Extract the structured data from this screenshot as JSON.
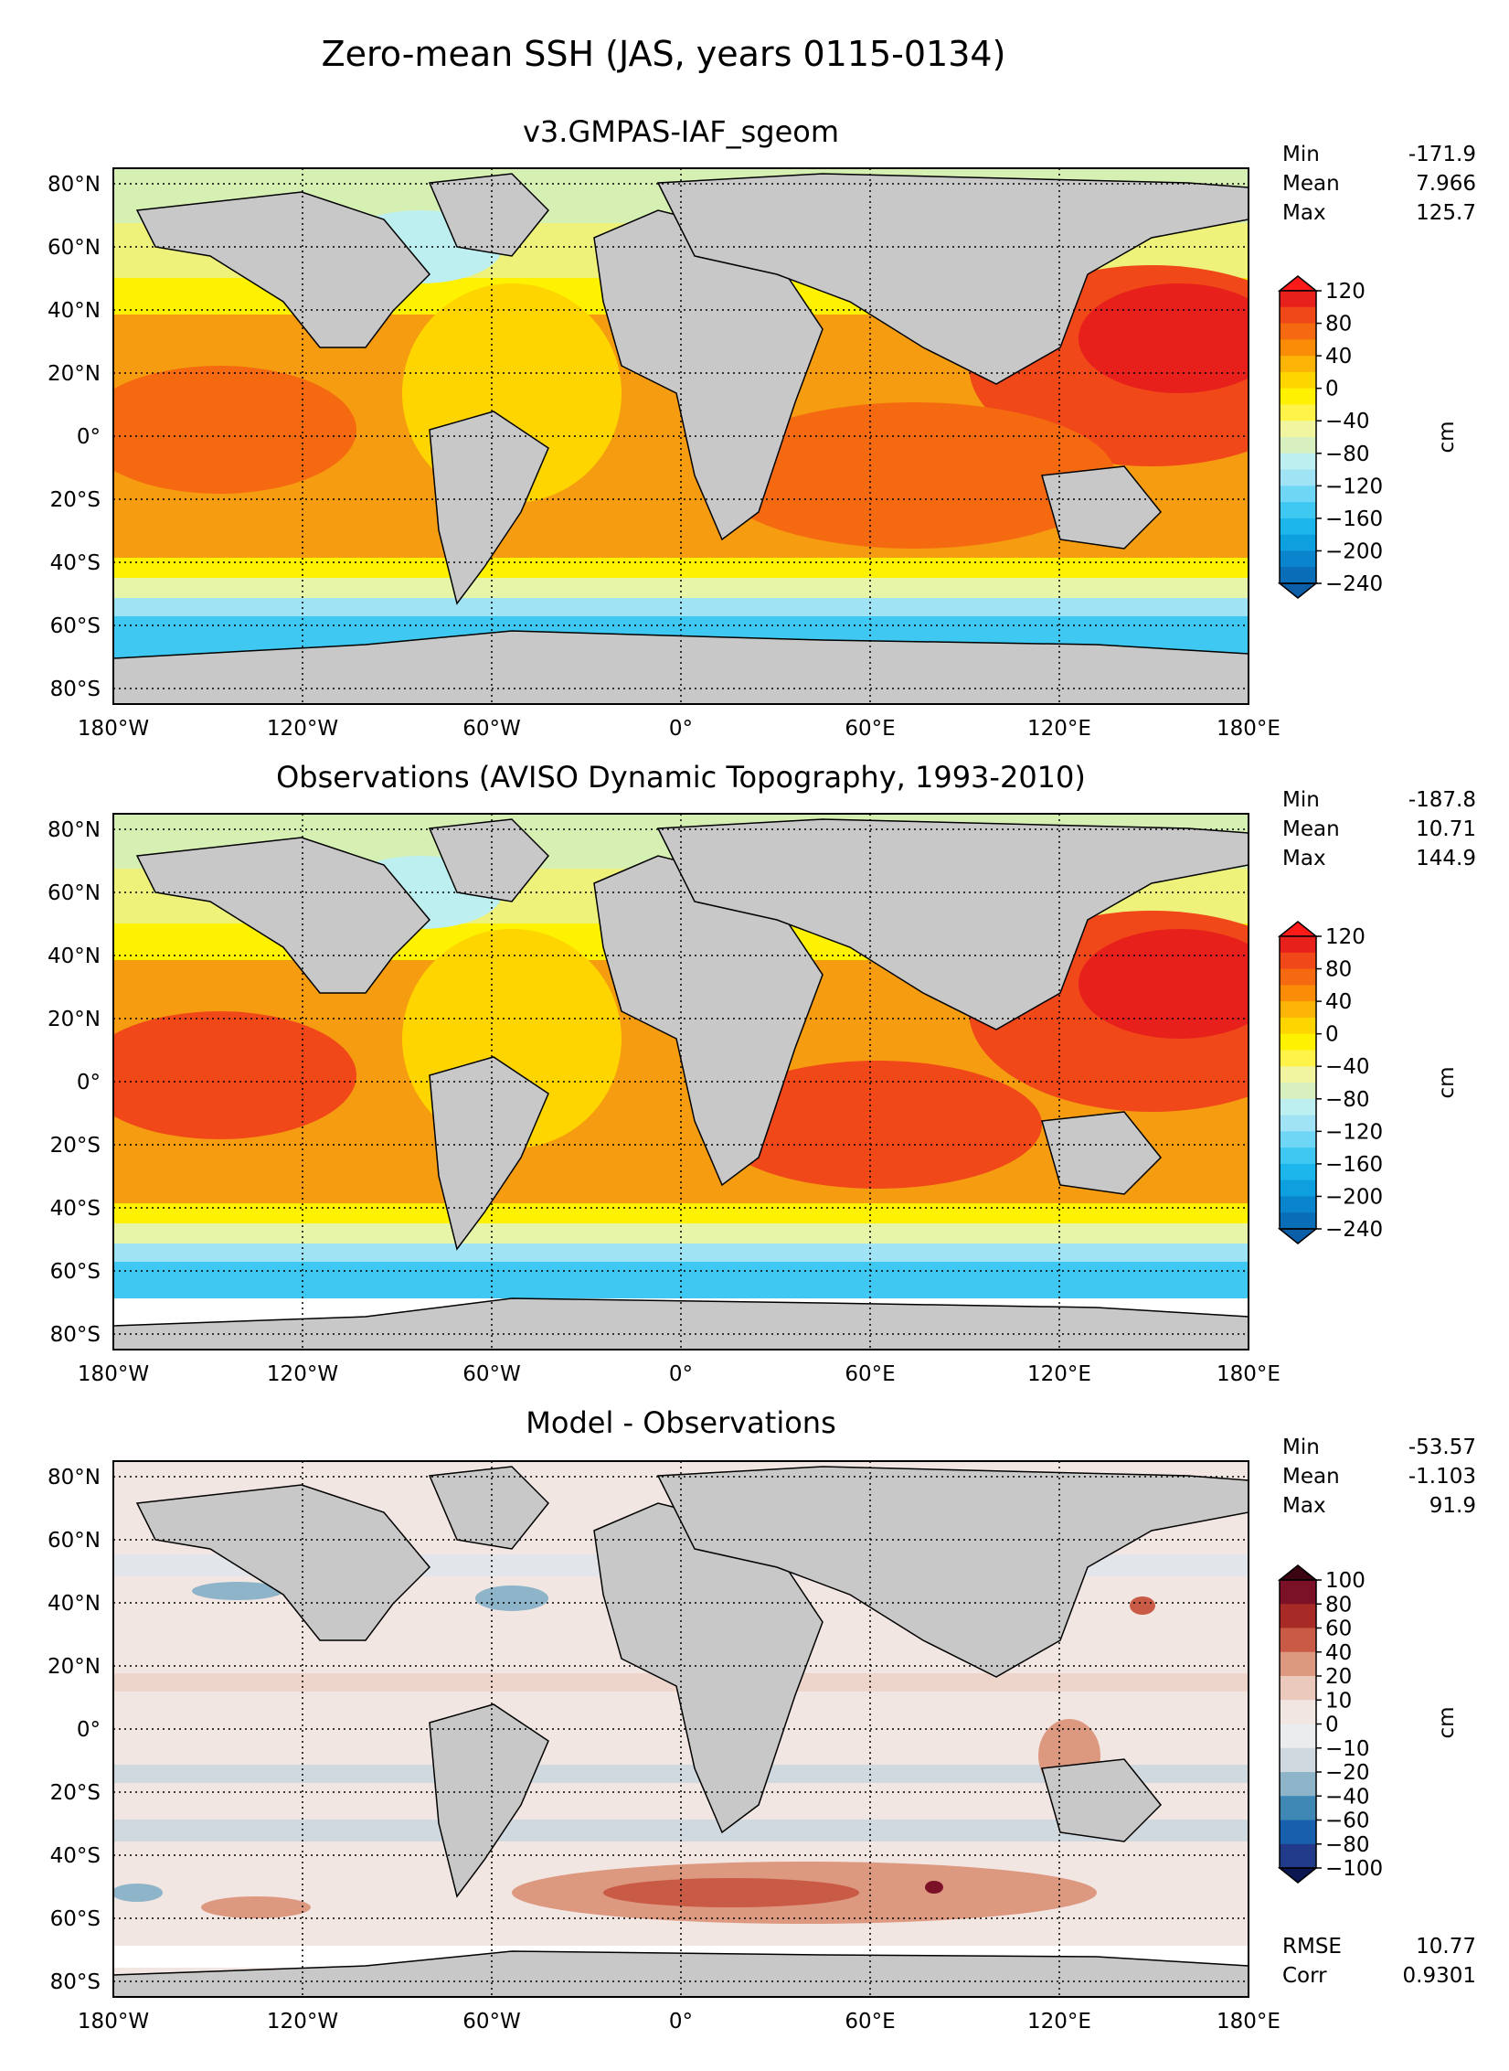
{
  "suptitle": "Zero-mean SSH (JAS, years 0115-0134)",
  "x_ticks": [
    "180°W",
    "120°W",
    "60°W",
    "0°",
    "60°E",
    "120°E",
    "180°E"
  ],
  "y_ticks": [
    "80°N",
    "60°N",
    "40°N",
    "20°N",
    "0°",
    "20°S",
    "40°S",
    "60°S",
    "80°S"
  ],
  "chart_data": [
    {
      "type": "heatmap",
      "title": "v3.GMPAS-IAF_sgeom",
      "xlabel": "",
      "ylabel": "",
      "xlim": [
        -180,
        180
      ],
      "ylim": [
        -85,
        85
      ],
      "grid": true,
      "stats": [
        {
          "label": "Min",
          "value": "-171.9"
        },
        {
          "label": "Mean",
          "value": "7.966"
        },
        {
          "label": "Max",
          "value": "125.7"
        }
      ],
      "colorbar": {
        "unit": "cm",
        "extend": "both",
        "ticks": [
          "120",
          "80",
          "40",
          "0",
          "−40",
          "−80",
          "−120",
          "−160",
          "−200",
          "−240"
        ],
        "colors": [
          "#e8201c",
          "#f04818",
          "#f56a10",
          "#fa8c08",
          "#fdb406",
          "#ffd500",
          "#fff200",
          "#fff34a",
          "#f2f5a0",
          "#d8f0c0",
          "#bdeff0",
          "#9fe3f5",
          "#6fd6f5",
          "#3ec8f2",
          "#1cb5ec",
          "#0e9fdf",
          "#0a85cd",
          "#0a6db7"
        ],
        "over": "#ff1a1a",
        "under": "#0b5ea8"
      }
    },
    {
      "type": "heatmap",
      "title": "Observations (AVISO Dynamic Topography, 1993-2010)",
      "xlabel": "",
      "ylabel": "",
      "xlim": [
        -180,
        180
      ],
      "ylim": [
        -85,
        85
      ],
      "grid": true,
      "stats": [
        {
          "label": "Min",
          "value": "-187.8"
        },
        {
          "label": "Mean",
          "value": "10.71"
        },
        {
          "label": "Max",
          "value": "144.9"
        }
      ],
      "colorbar": {
        "unit": "cm",
        "extend": "both",
        "ticks": [
          "120",
          "80",
          "40",
          "0",
          "−40",
          "−80",
          "−120",
          "−160",
          "−200",
          "−240"
        ],
        "colors": [
          "#e8201c",
          "#f04818",
          "#f56a10",
          "#fa8c08",
          "#fdb406",
          "#ffd500",
          "#fff200",
          "#fff34a",
          "#f2f5a0",
          "#d8f0c0",
          "#bdeff0",
          "#9fe3f5",
          "#6fd6f5",
          "#3ec8f2",
          "#1cb5ec",
          "#0e9fdf",
          "#0a85cd",
          "#0a6db7"
        ],
        "over": "#ff1a1a",
        "under": "#0b5ea8"
      }
    },
    {
      "type": "heatmap",
      "title": "Model - Observations",
      "xlabel": "",
      "ylabel": "",
      "xlim": [
        -180,
        180
      ],
      "ylim": [
        -85,
        85
      ],
      "grid": true,
      "stats": [
        {
          "label": "Min",
          "value": "-53.57"
        },
        {
          "label": "Mean",
          "value": "-1.103"
        },
        {
          "label": "Max",
          "value": "91.9"
        }
      ],
      "extra_stats": [
        {
          "label": "RMSE",
          "value": "10.77"
        },
        {
          "label": "Corr",
          "value": "0.9301"
        }
      ],
      "colorbar": {
        "unit": "cm",
        "extend": "both",
        "ticks": [
          "100",
          "80",
          "60",
          "40",
          "20",
          "10",
          "0",
          "−10",
          "−20",
          "−40",
          "−60",
          "−80",
          "−100"
        ],
        "colors": [
          "#7a1126",
          "#a82a26",
          "#c85a46",
          "#dd9880",
          "#ebc9bd",
          "#f2e6e2",
          "#eaecee",
          "#cfd9df",
          "#8db4c8",
          "#3f87b5",
          "#1660ad",
          "#223a8a"
        ],
        "over": "#3a0510",
        "under": "#0c1650"
      }
    }
  ],
  "colors": {
    "land": "#c8c8c8",
    "missing": "#ffffff",
    "coast": "#000000"
  }
}
